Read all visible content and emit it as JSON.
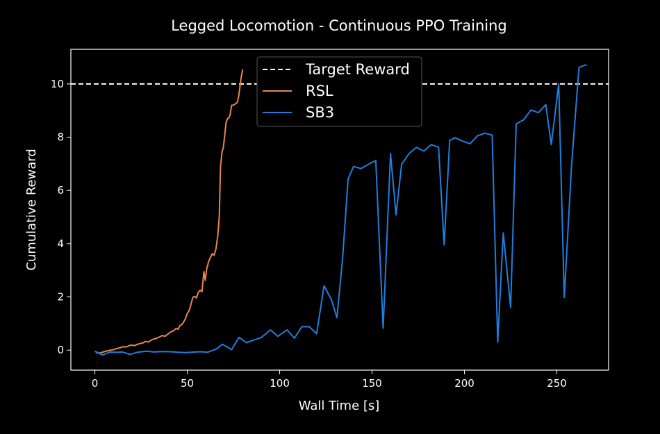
{
  "chart_data": {
    "type": "line",
    "title": "Legged Locomotion - Continuous PPO Training",
    "xlabel": "Wall Time [s]",
    "ylabel": "Cumulative Reward",
    "xlim": [
      -13,
      278
    ],
    "ylim": [
      -0.75,
      11.3
    ],
    "x_ticks": [
      0,
      50,
      100,
      150,
      200,
      250
    ],
    "y_ticks": [
      0,
      2,
      4,
      6,
      8,
      10
    ],
    "grid": false,
    "legend_position": "top-center",
    "background": "#000000",
    "reference_line": {
      "name": "Target Reward",
      "y": 10,
      "style": "dashed",
      "color": "#ffffff"
    },
    "series": [
      {
        "name": "RSL",
        "color": "#e8864f",
        "points": [
          [
            0.5,
            -0.08
          ],
          [
            2,
            -0.12
          ],
          [
            3.5,
            -0.09
          ],
          [
            5,
            -0.06
          ],
          [
            6.5,
            -0.03
          ],
          [
            8,
            -0.01
          ],
          [
            9.5,
            0.01
          ],
          [
            11,
            0.04
          ],
          [
            12.5,
            0.07
          ],
          [
            14,
            0.1
          ],
          [
            15.5,
            0.13
          ],
          [
            17,
            0.12
          ],
          [
            18.5,
            0.17
          ],
          [
            20,
            0.19
          ],
          [
            21.5,
            0.17
          ],
          [
            23,
            0.22
          ],
          [
            24.5,
            0.25
          ],
          [
            26,
            0.27
          ],
          [
            27.5,
            0.33
          ],
          [
            29,
            0.3
          ],
          [
            30.5,
            0.38
          ],
          [
            32,
            0.42
          ],
          [
            33.5,
            0.45
          ],
          [
            35,
            0.5
          ],
          [
            36.5,
            0.55
          ],
          [
            38,
            0.52
          ],
          [
            39.5,
            0.6
          ],
          [
            41,
            0.68
          ],
          [
            42.5,
            0.72
          ],
          [
            44,
            0.82
          ],
          [
            45,
            0.78
          ],
          [
            46,
            0.92
          ],
          [
            47,
            0.96
          ],
          [
            48,
            1.05
          ],
          [
            49,
            1.18
          ],
          [
            50,
            1.38
          ],
          [
            51,
            1.48
          ],
          [
            52,
            1.72
          ],
          [
            53,
            1.98
          ],
          [
            54,
            2.02
          ],
          [
            55,
            1.96
          ],
          [
            56,
            2.18
          ],
          [
            57,
            2.25
          ],
          [
            58,
            2.2
          ],
          [
            59,
            2.95
          ],
          [
            59.7,
            2.62
          ],
          [
            60.5,
            3.05
          ],
          [
            61.5,
            3.32
          ],
          [
            62.5,
            3.48
          ],
          [
            63.5,
            3.62
          ],
          [
            64.5,
            3.56
          ],
          [
            65.5,
            3.8
          ],
          [
            66.5,
            4.3
          ],
          [
            67.3,
            5.0
          ],
          [
            68,
            6.9
          ],
          [
            68.8,
            7.45
          ],
          [
            69.5,
            7.6
          ],
          [
            70.3,
            8.1
          ],
          [
            71,
            8.55
          ],
          [
            71.8,
            8.7
          ],
          [
            72.5,
            8.72
          ],
          [
            73.2,
            8.85
          ],
          [
            74,
            9.2
          ],
          [
            75,
            9.2
          ],
          [
            76,
            9.25
          ],
          [
            77,
            9.3
          ],
          [
            77.8,
            9.52
          ],
          [
            78.5,
            9.9
          ],
          [
            79.2,
            10.25
          ],
          [
            80,
            10.55
          ]
        ]
      },
      {
        "name": "SB3",
        "color": "#1e7fe0",
        "points": [
          [
            0,
            -0.04
          ],
          [
            4,
            -0.18
          ],
          [
            8,
            -0.08
          ],
          [
            12,
            -0.08
          ],
          [
            15,
            -0.07
          ],
          [
            19,
            -0.16
          ],
          [
            23,
            -0.08
          ],
          [
            28,
            -0.04
          ],
          [
            32,
            -0.07
          ],
          [
            36,
            -0.05
          ],
          [
            41,
            -0.06
          ],
          [
            45,
            -0.08
          ],
          [
            49,
            -0.09
          ],
          [
            52,
            -0.08
          ],
          [
            57,
            -0.06
          ],
          [
            61,
            -0.08
          ],
          [
            66,
            0.05
          ],
          [
            69,
            0.22
          ],
          [
            74,
            0.02
          ],
          [
            78,
            0.48
          ],
          [
            82,
            0.28
          ],
          [
            86,
            0.38
          ],
          [
            90,
            0.47
          ],
          [
            95,
            0.76
          ],
          [
            99,
            0.52
          ],
          [
            104,
            0.76
          ],
          [
            108,
            0.45
          ],
          [
            112,
            0.88
          ],
          [
            116,
            0.88
          ],
          [
            120,
            0.62
          ],
          [
            124,
            2.42
          ],
          [
            128,
            1.9
          ],
          [
            131,
            1.22
          ],
          [
            134,
            3.4
          ],
          [
            137,
            6.42
          ],
          [
            140,
            6.9
          ],
          [
            144,
            6.82
          ],
          [
            148,
            6.98
          ],
          [
            152,
            7.12
          ],
          [
            156,
            0.82
          ],
          [
            160,
            7.38
          ],
          [
            163,
            5.08
          ],
          [
            166,
            6.98
          ],
          [
            170,
            7.38
          ],
          [
            174,
            7.62
          ],
          [
            178,
            7.48
          ],
          [
            182,
            7.72
          ],
          [
            186,
            7.62
          ],
          [
            189,
            3.95
          ],
          [
            192,
            7.88
          ],
          [
            195,
            7.98
          ],
          [
            199,
            7.85
          ],
          [
            203,
            7.75
          ],
          [
            207,
            8.05
          ],
          [
            211,
            8.15
          ],
          [
            215,
            8.08
          ],
          [
            218,
            0.3
          ],
          [
            221,
            4.4
          ],
          [
            225,
            1.6
          ],
          [
            228,
            8.5
          ],
          [
            232,
            8.65
          ],
          [
            236,
            9.02
          ],
          [
            240,
            8.92
          ],
          [
            244,
            9.22
          ],
          [
            247,
            7.72
          ],
          [
            251,
            10.0
          ],
          [
            254,
            1.98
          ],
          [
            258,
            6.98
          ],
          [
            262,
            10.62
          ],
          [
            266,
            10.72
          ]
        ]
      }
    ]
  }
}
